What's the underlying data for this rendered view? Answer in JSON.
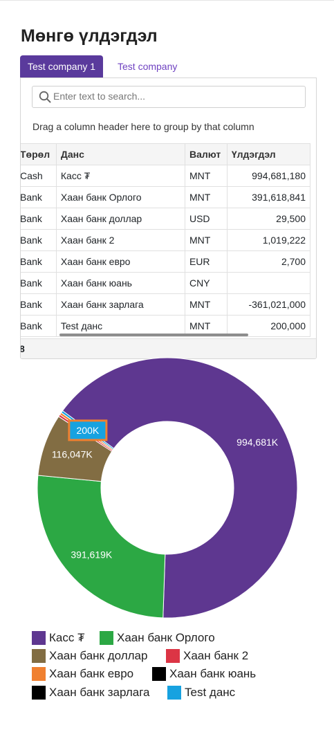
{
  "page": {
    "title": "Мөнгө үлдэгдэл"
  },
  "tabs": [
    {
      "label": "Test company 1",
      "active": true
    },
    {
      "label": "Test company",
      "active": false
    }
  ],
  "grid": {
    "search_placeholder": "Enter text to search...",
    "group_panel_text": "Drag a column header here to group by that column",
    "columns": [
      "Төрөл",
      "Данс",
      "Валют",
      "Үлдэгдэл"
    ],
    "rows": [
      [
        "Cash",
        "Касс ₮",
        "MNT",
        "994,681,180"
      ],
      [
        "Bank",
        "Хаан банк Орлого",
        "MNT",
        "391,618,841"
      ],
      [
        "Bank",
        "Хаан банк доллар",
        "USD",
        "29,500"
      ],
      [
        "Bank",
        "Хаан банк 2",
        "MNT",
        "1,019,222"
      ],
      [
        "Bank",
        "Хаан банк евро",
        "EUR",
        "2,700"
      ],
      [
        "Bank",
        "Хаан банк юань",
        "CNY",
        ""
      ],
      [
        "Bank",
        "Хаан банк зарлага",
        "MNT",
        "-361,021,000"
      ],
      [
        "Bank",
        "Test данс",
        "MNT",
        "200,000"
      ]
    ],
    "footer_text": "8"
  },
  "chart_data": {
    "type": "pie",
    "style": "donut",
    "legend_position": "bottom",
    "series": [
      {
        "name": "Касс ₮",
        "value": 994681,
        "label": "994,681K",
        "color": "#5e3790"
      },
      {
        "name": "Хаан банк Орлого",
        "value": 391619,
        "label": "391,619K",
        "color": "#2ca844"
      },
      {
        "name": "Хаан банк доллар",
        "value": 116047,
        "label": "116,047K",
        "color": "#826d43"
      },
      {
        "name": "Хаан банк 2",
        "value": 1019,
        "label": "",
        "color": "#dc3545"
      },
      {
        "name": "Хаан банк евро",
        "value": 2700,
        "label": "",
        "color": "#f08030"
      },
      {
        "name": "Хаан банк юань",
        "value": 0,
        "label": "",
        "color": "#000000"
      },
      {
        "name": "Хаан банк зарлага",
        "value": 0,
        "label": "",
        "color": "#000000"
      },
      {
        "name": "Test данс",
        "value": 200,
        "label": "200K",
        "color": "#17a2e0"
      }
    ]
  }
}
